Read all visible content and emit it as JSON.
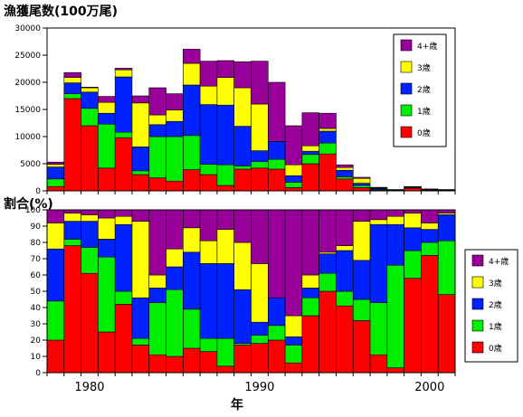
{
  "chart_data": [
    {
      "type": "bar",
      "stacked": true,
      "title": "漁獲尾数(100万尾)",
      "xlabel": "",
      "ylabel": "",
      "ylim": [
        0,
        30000
      ],
      "yticks": [
        "0",
        "5000",
        "10000",
        "15000",
        "20000",
        "25000",
        "30000"
      ],
      "categories": [
        1978,
        1979,
        1980,
        1981,
        1982,
        1983,
        1984,
        1985,
        1986,
        1987,
        1988,
        1989,
        1990,
        1991,
        1992,
        1993,
        1994,
        1995,
        1996,
        1997,
        1998,
        1999,
        2000,
        2001
      ],
      "legend": [
        "4+歳",
        "3歳",
        "2歳",
        "1歳",
        "0歳"
      ],
      "legend_position": "right",
      "series": [
        {
          "name": "0歳",
          "values": [
            800,
            17000,
            12000,
            4200,
            9800,
            3000,
            2400,
            1800,
            3900,
            3000,
            1000,
            4000,
            4200,
            4000,
            600,
            5000,
            6800,
            2200,
            600,
            100,
            50,
            500,
            100,
            50
          ]
        },
        {
          "name": "1歳",
          "values": [
            1400,
            900,
            3200,
            8100,
            1000,
            700,
            7600,
            8200,
            6300,
            1900,
            3800,
            600,
            1200,
            1800,
            1000,
            1700,
            2000,
            400,
            400,
            150,
            50,
            150,
            100,
            50
          ]
        },
        {
          "name": "2歳",
          "values": [
            2200,
            2000,
            3000,
            2000,
            10200,
            4400,
            2200,
            2800,
            9300,
            11000,
            11000,
            7300,
            2000,
            3300,
            1200,
            600,
            2200,
            1200,
            400,
            200,
            50,
            50,
            50,
            50
          ]
        },
        {
          "name": "3歳",
          "values": [
            500,
            1000,
            800,
            2000,
            1300,
            8100,
            1800,
            2100,
            4000,
            3400,
            5100,
            7100,
            8600,
            0,
            2000,
            1000,
            500,
            500,
            900,
            100,
            50,
            50,
            50,
            50
          ]
        },
        {
          "name": "4+歳",
          "values": [
            400,
            900,
            100,
            1100,
            300,
            1300,
            5000,
            3000,
            2600,
            4600,
            3100,
            4800,
            7900,
            10900,
            7200,
            6100,
            2800,
            500,
            200,
            100,
            50,
            50,
            50,
            50
          ]
        }
      ],
      "colors": {
        "0歳": "#ff0000",
        "1歳": "#00ee00",
        "2歳": "#0022ff",
        "3歳": "#ffff00",
        "4+歳": "#990099"
      }
    },
    {
      "type": "bar",
      "stacked": true,
      "title": "割合(%)",
      "xlabel": "年",
      "ylabel": "",
      "ylim": [
        0,
        100
      ],
      "yticks": [
        "0",
        "10",
        "20",
        "30",
        "40",
        "50",
        "60",
        "70",
        "80",
        "90",
        "100"
      ],
      "xticks": [
        "1980",
        "1990",
        "2000"
      ],
      "categories": [
        1978,
        1979,
        1980,
        1981,
        1982,
        1983,
        1984,
        1985,
        1986,
        1987,
        1988,
        1989,
        1990,
        1991,
        1992,
        1993,
        1994,
        1995,
        1996,
        1997,
        1998,
        1999,
        2000,
        2001
      ],
      "legend": [
        "4+歳",
        "3歳",
        "2歳",
        "1歳",
        "0歳"
      ],
      "legend_position": "right",
      "series": [
        {
          "name": "0歳",
          "values": [
            20,
            78,
            61,
            25,
            42,
            17,
            11,
            10,
            15,
            13,
            4,
            17,
            18,
            20,
            6,
            35,
            50,
            41,
            32,
            11,
            3,
            58,
            72,
            48
          ]
        },
        {
          "name": "1歳",
          "values": [
            24,
            4,
            16,
            46,
            8,
            4,
            32,
            41,
            24,
            8,
            17,
            1,
            5,
            9,
            11,
            11,
            11,
            9,
            13,
            32,
            63,
            17,
            8,
            33
          ]
        },
        {
          "name": "2歳",
          "values": [
            32,
            11,
            16,
            11,
            41,
            25,
            9,
            14,
            35,
            46,
            46,
            33,
            8,
            17,
            5,
            6,
            12,
            25,
            24,
            48,
            25,
            14,
            8,
            16
          ]
        },
        {
          "name": "3歳",
          "values": [
            16,
            5,
            4,
            13,
            5,
            47,
            8,
            11,
            15,
            14,
            21,
            29,
            36,
            0,
            13,
            8,
            1,
            3,
            24,
            3,
            5,
            9,
            4,
            1
          ]
        },
        {
          "name": "4+歳",
          "values": [
            8,
            2,
            3,
            5,
            4,
            7,
            40,
            24,
            11,
            19,
            12,
            20,
            33,
            54,
            65,
            40,
            26,
            22,
            7,
            6,
            4,
            2,
            8,
            2
          ]
        }
      ],
      "colors": {
        "0歳": "#ff0000",
        "1歳": "#00ee00",
        "2歳": "#0022ff",
        "3歳": "#ffff00",
        "4+歳": "#990099"
      }
    }
  ]
}
